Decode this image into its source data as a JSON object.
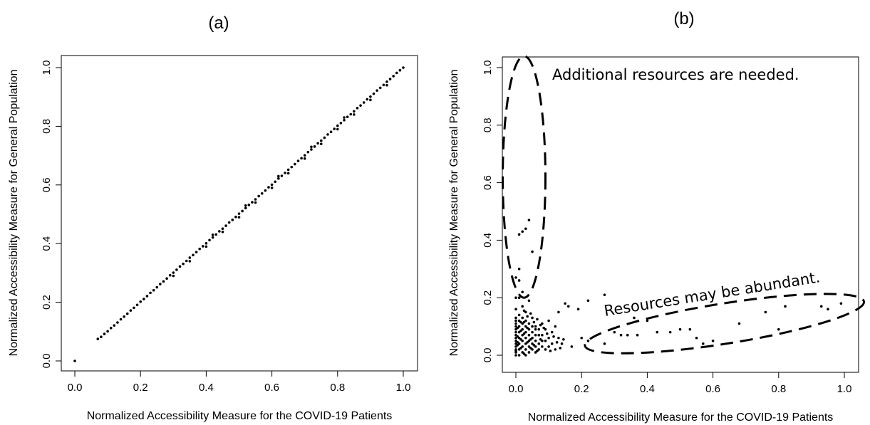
{
  "chart_data": [
    {
      "type": "scatter",
      "panel_label": "(a)",
      "xlabel": "Normalized Accessibility Measure for the COVID-19 Patients",
      "ylabel": "Normalized Accessibility Measure for General Population",
      "xlim": [
        0,
        1
      ],
      "ylim": [
        0,
        1
      ],
      "xticks": [
        "0.0",
        "0.2",
        "0.4",
        "0.6",
        "0.8",
        "1.0"
      ],
      "yticks": [
        "0.0",
        "0.2",
        "0.4",
        "0.6",
        "0.8",
        "1.0"
      ],
      "grid": false,
      "points": [
        [
          0.0,
          0.0
        ],
        [
          0.07,
          0.075
        ],
        [
          0.08,
          0.082
        ],
        [
          0.09,
          0.092
        ],
        [
          0.1,
          0.101
        ],
        [
          0.11,
          0.112
        ],
        [
          0.12,
          0.121
        ],
        [
          0.13,
          0.131
        ],
        [
          0.14,
          0.142
        ],
        [
          0.15,
          0.151
        ],
        [
          0.16,
          0.161
        ],
        [
          0.17,
          0.172
        ],
        [
          0.18,
          0.181
        ],
        [
          0.19,
          0.191
        ],
        [
          0.2,
          0.202
        ],
        [
          0.21,
          0.211
        ],
        [
          0.22,
          0.221
        ],
        [
          0.23,
          0.232
        ],
        [
          0.24,
          0.241
        ],
        [
          0.25,
          0.251
        ],
        [
          0.26,
          0.262
        ],
        [
          0.27,
          0.271
        ],
        [
          0.28,
          0.281
        ],
        [
          0.29,
          0.292
        ],
        [
          0.3,
          0.301
        ],
        [
          0.31,
          0.311
        ],
        [
          0.32,
          0.322
        ],
        [
          0.33,
          0.331
        ],
        [
          0.34,
          0.341
        ],
        [
          0.35,
          0.352
        ],
        [
          0.36,
          0.361
        ],
        [
          0.37,
          0.371
        ],
        [
          0.38,
          0.382
        ],
        [
          0.39,
          0.391
        ],
        [
          0.4,
          0.401
        ],
        [
          0.41,
          0.412
        ],
        [
          0.42,
          0.421
        ],
        [
          0.43,
          0.431
        ],
        [
          0.44,
          0.442
        ],
        [
          0.45,
          0.451
        ],
        [
          0.46,
          0.461
        ],
        [
          0.47,
          0.472
        ],
        [
          0.48,
          0.481
        ],
        [
          0.49,
          0.491
        ],
        [
          0.5,
          0.502
        ],
        [
          0.51,
          0.511
        ],
        [
          0.52,
          0.521
        ],
        [
          0.53,
          0.532
        ],
        [
          0.54,
          0.541
        ],
        [
          0.55,
          0.551
        ],
        [
          0.56,
          0.562
        ],
        [
          0.57,
          0.571
        ],
        [
          0.58,
          0.581
        ],
        [
          0.59,
          0.592
        ],
        [
          0.6,
          0.601
        ],
        [
          0.61,
          0.611
        ],
        [
          0.62,
          0.622
        ],
        [
          0.63,
          0.631
        ],
        [
          0.64,
          0.641
        ],
        [
          0.65,
          0.652
        ],
        [
          0.66,
          0.661
        ],
        [
          0.67,
          0.671
        ],
        [
          0.68,
          0.682
        ],
        [
          0.69,
          0.691
        ],
        [
          0.7,
          0.701
        ],
        [
          0.71,
          0.712
        ],
        [
          0.72,
          0.721
        ],
        [
          0.73,
          0.731
        ],
        [
          0.74,
          0.742
        ],
        [
          0.75,
          0.751
        ],
        [
          0.76,
          0.761
        ],
        [
          0.77,
          0.772
        ],
        [
          0.78,
          0.781
        ],
        [
          0.79,
          0.791
        ],
        [
          0.8,
          0.802
        ],
        [
          0.81,
          0.811
        ],
        [
          0.82,
          0.821
        ],
        [
          0.83,
          0.832
        ],
        [
          0.84,
          0.841
        ],
        [
          0.85,
          0.851
        ],
        [
          0.86,
          0.862
        ],
        [
          0.87,
          0.871
        ],
        [
          0.88,
          0.881
        ],
        [
          0.89,
          0.892
        ],
        [
          0.9,
          0.901
        ],
        [
          0.91,
          0.911
        ],
        [
          0.92,
          0.922
        ],
        [
          0.93,
          0.931
        ],
        [
          0.94,
          0.941
        ],
        [
          0.95,
          0.952
        ],
        [
          0.96,
          0.961
        ],
        [
          0.97,
          0.971
        ],
        [
          0.98,
          0.982
        ],
        [
          0.99,
          0.991
        ],
        [
          1.0,
          1.0
        ],
        [
          0.3,
          0.29
        ],
        [
          0.35,
          0.34
        ],
        [
          0.4,
          0.39
        ],
        [
          0.45,
          0.44
        ],
        [
          0.5,
          0.49
        ],
        [
          0.55,
          0.54
        ],
        [
          0.6,
          0.59
        ],
        [
          0.65,
          0.64
        ],
        [
          0.7,
          0.69
        ],
        [
          0.75,
          0.74
        ],
        [
          0.8,
          0.79
        ],
        [
          0.85,
          0.84
        ],
        [
          0.9,
          0.89
        ],
        [
          0.95,
          0.94
        ],
        [
          0.42,
          0.43
        ],
        [
          0.52,
          0.53
        ],
        [
          0.62,
          0.63
        ],
        [
          0.72,
          0.73
        ],
        [
          0.82,
          0.83
        ]
      ]
    },
    {
      "type": "scatter",
      "panel_label": "(b)",
      "xlabel": "Normalized Accessibility Measure for the COVID-19 Patients",
      "ylabel": "Normalized Accessibility Measure for General Population",
      "xlim": [
        0,
        1
      ],
      "ylim": [
        0,
        1
      ],
      "xticks": [
        "0.0",
        "0.2",
        "0.4",
        "0.6",
        "0.8",
        "1.0"
      ],
      "yticks": [
        "0.0",
        "0.2",
        "0.4",
        "0.6",
        "0.8",
        "1.0"
      ],
      "grid": false,
      "annotations": [
        {
          "text": "Additional resources are needed.",
          "center": [
            0.025,
            0.62
          ],
          "radii": [
            0.065,
            0.42
          ],
          "rotation": 0
        },
        {
          "text": "Resources may be abundant.",
          "center": [
            0.635,
            0.11
          ],
          "radii": [
            0.43,
            0.07
          ],
          "rotation": -9
        }
      ],
      "points": [
        [
          0.01,
          0.42
        ],
        [
          0.02,
          0.43
        ],
        [
          0.04,
          0.47
        ],
        [
          0.03,
          0.44
        ],
        [
          0.05,
          0.36
        ],
        [
          0.01,
          0.3
        ],
        [
          0.0,
          0.27
        ],
        [
          0.01,
          0.26
        ],
        [
          0.02,
          0.22
        ],
        [
          0.0,
          0.2
        ],
        [
          0.01,
          0.2
        ],
        [
          0.04,
          0.19
        ],
        [
          0.27,
          0.21
        ],
        [
          0.22,
          0.19
        ],
        [
          0.15,
          0.18
        ],
        [
          0.16,
          0.17
        ],
        [
          0.19,
          0.16
        ],
        [
          0.13,
          0.15
        ],
        [
          0.36,
          0.13
        ],
        [
          0.4,
          0.12
        ],
        [
          0.3,
          0.08
        ],
        [
          0.32,
          0.07
        ],
        [
          0.34,
          0.07
        ],
        [
          0.37,
          0.07
        ],
        [
          0.43,
          0.08
        ],
        [
          0.47,
          0.08
        ],
        [
          0.5,
          0.09
        ],
        [
          0.53,
          0.09
        ],
        [
          0.55,
          0.06
        ],
        [
          0.57,
          0.04
        ],
        [
          0.6,
          0.05
        ],
        [
          0.68,
          0.11
        ],
        [
          0.76,
          0.15
        ],
        [
          0.8,
          0.09
        ],
        [
          0.82,
          0.17
        ],
        [
          0.93,
          0.17
        ],
        [
          0.99,
          0.18
        ],
        [
          0.95,
          0.16
        ],
        [
          0.27,
          0.04
        ],
        [
          0.2,
          0.06
        ],
        [
          0.22,
          0.05
        ],
        [
          0.17,
          0.03
        ],
        [
          0.14,
          0.04
        ],
        [
          0.11,
          0.08
        ],
        [
          0.12,
          0.1
        ],
        [
          0.1,
          0.12
        ],
        [
          0.09,
          0.09
        ],
        [
          0.08,
          0.11
        ],
        [
          0.07,
          0.07
        ],
        [
          0.06,
          0.1
        ],
        [
          0.05,
          0.13
        ],
        [
          0.06,
          0.05
        ],
        [
          0.04,
          0.09
        ],
        [
          0.03,
          0.15
        ],
        [
          0.02,
          0.17
        ],
        [
          0.0,
          0.16
        ],
        [
          0.01,
          0.14
        ],
        [
          0.0,
          0.0
        ],
        [
          0.0,
          0.01
        ],
        [
          0.0,
          0.02
        ],
        [
          0.0,
          0.03
        ],
        [
          0.0,
          0.04
        ],
        [
          0.0,
          0.05
        ],
        [
          0.0,
          0.06
        ],
        [
          0.0,
          0.07
        ],
        [
          0.0,
          0.08
        ],
        [
          0.0,
          0.09
        ],
        [
          0.0,
          0.1
        ],
        [
          0.0,
          0.11
        ],
        [
          0.0,
          0.12
        ],
        [
          0.0,
          0.13
        ],
        [
          0.01,
          0.0
        ],
        [
          0.01,
          0.02
        ],
        [
          0.01,
          0.04
        ],
        [
          0.01,
          0.06
        ],
        [
          0.01,
          0.08
        ],
        [
          0.01,
          0.1
        ],
        [
          0.01,
          0.12
        ],
        [
          0.02,
          0.01
        ],
        [
          0.02,
          0.03
        ],
        [
          0.02,
          0.05
        ],
        [
          0.02,
          0.07
        ],
        [
          0.02,
          0.09
        ],
        [
          0.02,
          0.11
        ],
        [
          0.02,
          0.13
        ],
        [
          0.03,
          0.0
        ],
        [
          0.03,
          0.02
        ],
        [
          0.03,
          0.04
        ],
        [
          0.03,
          0.06
        ],
        [
          0.03,
          0.08
        ],
        [
          0.03,
          0.1
        ],
        [
          0.03,
          0.12
        ],
        [
          0.04,
          0.01
        ],
        [
          0.04,
          0.03
        ],
        [
          0.04,
          0.05
        ],
        [
          0.04,
          0.07
        ],
        [
          0.04,
          0.11
        ],
        [
          0.05,
          0.02
        ],
        [
          0.05,
          0.04
        ],
        [
          0.05,
          0.06
        ],
        [
          0.05,
          0.08
        ],
        [
          0.05,
          0.1
        ],
        [
          0.06,
          0.01
        ],
        [
          0.06,
          0.03
        ],
        [
          0.06,
          0.07
        ],
        [
          0.06,
          0.09
        ],
        [
          0.07,
          0.02
        ],
        [
          0.07,
          0.04
        ],
        [
          0.07,
          0.09
        ],
        [
          0.08,
          0.03
        ],
        [
          0.08,
          0.05
        ],
        [
          0.08,
          0.07
        ],
        [
          0.09,
          0.02
        ],
        [
          0.09,
          0.05
        ],
        [
          0.1,
          0.03
        ],
        [
          0.1,
          0.06
        ],
        [
          0.11,
          0.04
        ],
        [
          0.12,
          0.02
        ],
        [
          0.13,
          0.06
        ],
        [
          0.0,
          0.015
        ],
        [
          0.005,
          0.035
        ],
        [
          0.015,
          0.055
        ],
        [
          0.025,
          0.075
        ],
        [
          0.035,
          0.095
        ],
        [
          0.045,
          0.025
        ],
        [
          0.005,
          0.045
        ],
        [
          0.015,
          0.025
        ],
        [
          0.025,
          0.005
        ],
        [
          0.035,
          0.045
        ],
        [
          0.015,
          0.085
        ],
        [
          0.005,
          0.065
        ],
        [
          0.025,
          0.115
        ],
        [
          0.045,
          0.055
        ],
        [
          0.055,
          0.035
        ],
        [
          0.065,
          0.015
        ],
        [
          0.075,
          0.055
        ],
        [
          0.085,
          0.095
        ],
        [
          0.095,
          0.075
        ],
        [
          0.105,
          0.015
        ],
        [
          0.115,
          0.065
        ],
        [
          0.125,
          0.045
        ],
        [
          0.135,
          0.025
        ],
        [
          0.145,
          0.055
        ],
        [
          0.005,
          0.095
        ],
        [
          0.015,
          0.115
        ],
        [
          0.025,
          0.155
        ],
        [
          0.035,
          0.135
        ],
        [
          0.045,
          0.145
        ],
        [
          0.055,
          0.115
        ],
        [
          0.065,
          0.125
        ],
        [
          0.075,
          0.105
        ]
      ]
    }
  ]
}
